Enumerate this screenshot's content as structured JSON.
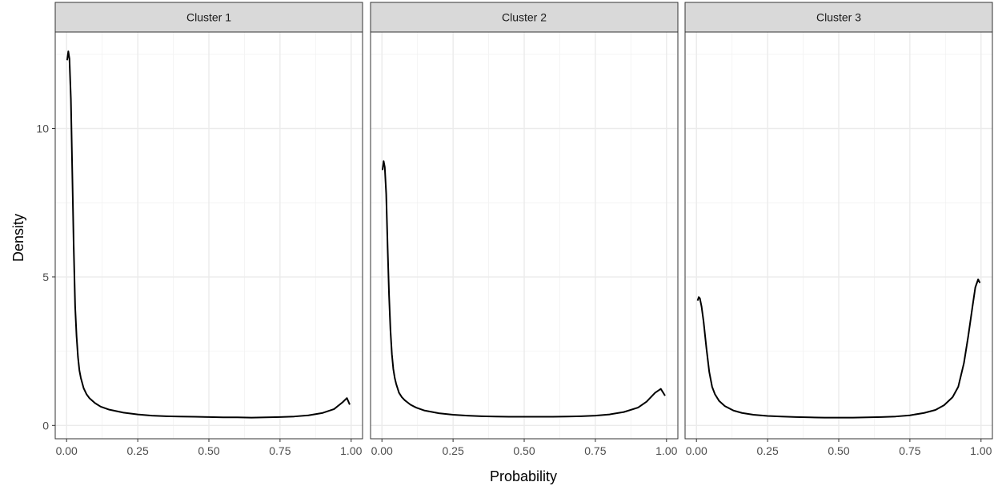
{
  "chart_data": {
    "type": "line",
    "xlabel": "Probability",
    "ylabel": "Density",
    "xlim": [
      -0.04,
      1.04
    ],
    "ylim": [
      -0.45,
      13.25
    ],
    "xticks": [
      0,
      0.25,
      0.5,
      0.75,
      1
    ],
    "xtick_labels": [
      "0.00",
      "0.25",
      "0.50",
      "0.75",
      "1.00"
    ],
    "yticks": [
      0,
      5,
      10
    ],
    "ytick_labels": [
      "0",
      "5",
      "10"
    ],
    "grid": true,
    "line_color": "#000000",
    "panels": [
      {
        "label": "Cluster 1",
        "x": [
          0.002,
          0.006,
          0.01,
          0.015,
          0.02,
          0.025,
          0.03,
          0.035,
          0.04,
          0.045,
          0.05,
          0.06,
          0.07,
          0.08,
          0.1,
          0.12,
          0.15,
          0.2,
          0.25,
          0.3,
          0.35,
          0.4,
          0.45,
          0.5,
          0.55,
          0.6,
          0.65,
          0.7,
          0.75,
          0.8,
          0.85,
          0.9,
          0.94,
          0.97,
          0.985,
          0.995
        ],
        "y": [
          12.3,
          12.6,
          12.35,
          11.0,
          8.5,
          6.0,
          4.0,
          3.0,
          2.3,
          1.85,
          1.6,
          1.25,
          1.05,
          0.92,
          0.75,
          0.63,
          0.53,
          0.43,
          0.37,
          0.33,
          0.31,
          0.3,
          0.29,
          0.28,
          0.27,
          0.27,
          0.26,
          0.27,
          0.28,
          0.3,
          0.34,
          0.42,
          0.55,
          0.78,
          0.92,
          0.7
        ]
      },
      {
        "label": "Cluster 2",
        "x": [
          0.002,
          0.006,
          0.01,
          0.015,
          0.02,
          0.025,
          0.03,
          0.035,
          0.04,
          0.045,
          0.05,
          0.06,
          0.07,
          0.08,
          0.1,
          0.12,
          0.15,
          0.2,
          0.25,
          0.3,
          0.35,
          0.4,
          0.45,
          0.5,
          0.55,
          0.6,
          0.65,
          0.7,
          0.75,
          0.8,
          0.85,
          0.9,
          0.93,
          0.96,
          0.98,
          0.995
        ],
        "y": [
          8.6,
          8.9,
          8.7,
          7.8,
          6.0,
          4.4,
          3.2,
          2.4,
          1.9,
          1.6,
          1.4,
          1.1,
          0.95,
          0.85,
          0.7,
          0.6,
          0.5,
          0.41,
          0.36,
          0.33,
          0.31,
          0.3,
          0.29,
          0.29,
          0.29,
          0.29,
          0.3,
          0.31,
          0.33,
          0.37,
          0.45,
          0.6,
          0.8,
          1.1,
          1.23,
          1.0
        ]
      },
      {
        "label": "Cluster 3",
        "x": [
          0.004,
          0.008,
          0.012,
          0.018,
          0.025,
          0.035,
          0.045,
          0.055,
          0.065,
          0.08,
          0.1,
          0.13,
          0.16,
          0.2,
          0.25,
          0.3,
          0.35,
          0.4,
          0.45,
          0.5,
          0.55,
          0.6,
          0.65,
          0.7,
          0.75,
          0.8,
          0.84,
          0.87,
          0.9,
          0.92,
          0.94,
          0.955,
          0.97,
          0.98,
          0.99,
          0.996
        ],
        "y": [
          4.2,
          4.32,
          4.28,
          4.0,
          3.5,
          2.6,
          1.8,
          1.3,
          1.05,
          0.82,
          0.65,
          0.5,
          0.42,
          0.36,
          0.32,
          0.3,
          0.28,
          0.27,
          0.26,
          0.26,
          0.26,
          0.27,
          0.28,
          0.3,
          0.34,
          0.42,
          0.52,
          0.68,
          0.95,
          1.3,
          2.1,
          3.0,
          4.0,
          4.65,
          4.92,
          4.8
        ]
      }
    ]
  }
}
